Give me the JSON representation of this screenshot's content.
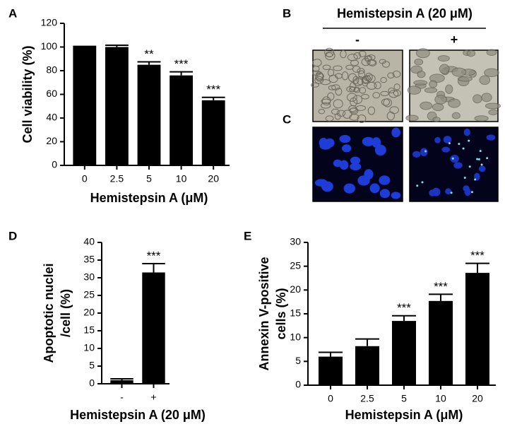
{
  "chart_data": [
    {
      "type": "bar",
      "panel": "A",
      "categories": [
        "0",
        "2.5",
        "5",
        "10",
        "20"
      ],
      "values": [
        100,
        100,
        85,
        76,
        55
      ],
      "errors": [
        0.5,
        1.5,
        2.5,
        3,
        2.5
      ],
      "annotations": [
        null,
        null,
        "**",
        "***",
        "***"
      ],
      "color": "#000000",
      "ylim": [
        0,
        120
      ],
      "yticks": [
        0,
        20,
        40,
        60,
        80,
        100,
        120
      ],
      "ylabel": [
        "Cell viability (%)"
      ],
      "xlabel": "Hemistepsin A (μM)"
    },
    {
      "type": "bar",
      "panel": "D",
      "categories": [
        "-",
        "+"
      ],
      "values": [
        1,
        31.5
      ],
      "errors": [
        0.4,
        2.5
      ],
      "annotations": [
        null,
        "***"
      ],
      "color": "#000000",
      "ylim": [
        0,
        40
      ],
      "yticks": [
        0,
        5,
        10,
        15,
        20,
        25,
        30,
        35,
        40
      ],
      "ylabel": [
        "Apoptotic nuclei",
        "/cell (%)"
      ],
      "xlabel": "Hemistepsin A (20 μM)"
    },
    {
      "type": "bar",
      "panel": "E",
      "categories": [
        "0",
        "2.5",
        "5",
        "10",
        "20"
      ],
      "values": [
        6,
        8.2,
        13.5,
        17.7,
        23.6
      ],
      "errors": [
        0.9,
        1.5,
        1.1,
        1.4,
        2.0
      ],
      "annotations": [
        null,
        null,
        "***",
        "***",
        "***"
      ],
      "color": "#000000",
      "ylim": [
        0,
        30
      ],
      "yticks": [
        0,
        5,
        10,
        15,
        20,
        25,
        30
      ],
      "ylabel": [
        "Annexin V-positive",
        "cells (%)"
      ],
      "xlabel": "Hemistepsin A (μM)"
    }
  ],
  "images": {
    "labels": [
      "B",
      "C"
    ],
    "title": "Hemistepsin A (20 μM)",
    "conditions": [
      "-",
      "+"
    ]
  }
}
